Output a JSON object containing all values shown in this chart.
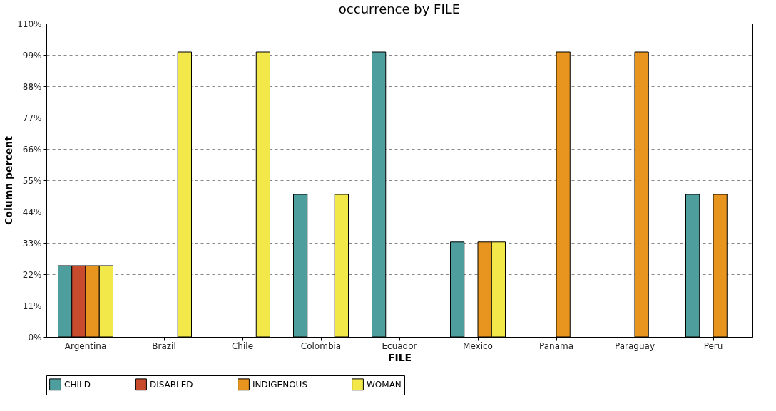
{
  "chart_data": {
    "type": "bar",
    "title": "occurrence by FILE",
    "xlabel": "FILE",
    "ylabel": "Column percent",
    "categories": [
      "Argentina",
      "Brazil",
      "Chile",
      "Colombia",
      "Ecuador",
      "Mexico",
      "Panama",
      "Paraguay",
      "Peru"
    ],
    "series": [
      {
        "name": "CHILD",
        "color": "#4e9e9e",
        "values": [
          25,
          null,
          null,
          50,
          100,
          33.3,
          null,
          null,
          50
        ]
      },
      {
        "name": "DISABLED",
        "color": "#c84b2e",
        "values": [
          25,
          null,
          null,
          null,
          null,
          null,
          null,
          null,
          null
        ]
      },
      {
        "name": "INDIGENOUS",
        "color": "#e8951f",
        "values": [
          25,
          null,
          null,
          null,
          null,
          33.3,
          100,
          100,
          50
        ]
      },
      {
        "name": "WOMAN",
        "color": "#f2e84a",
        "values": [
          25,
          100,
          100,
          50,
          null,
          33.3,
          null,
          null,
          null
        ]
      }
    ],
    "ylim": [
      0,
      110
    ],
    "yticks": [
      {
        "value": 0,
        "label": "0%"
      },
      {
        "value": 11,
        "label": "11%"
      },
      {
        "value": 22,
        "label": "22%"
      },
      {
        "value": 33,
        "label": "33%"
      },
      {
        "value": 44,
        "label": "44%"
      },
      {
        "value": 55,
        "label": "55%"
      },
      {
        "value": 66,
        "label": "66%"
      },
      {
        "value": 77,
        "label": "77%"
      },
      {
        "value": 88,
        "label": "88%"
      },
      {
        "value": 99,
        "label": "99%"
      },
      {
        "value": 110,
        "label": "110%"
      }
    ],
    "grid": "y",
    "legend": "bottom"
  }
}
